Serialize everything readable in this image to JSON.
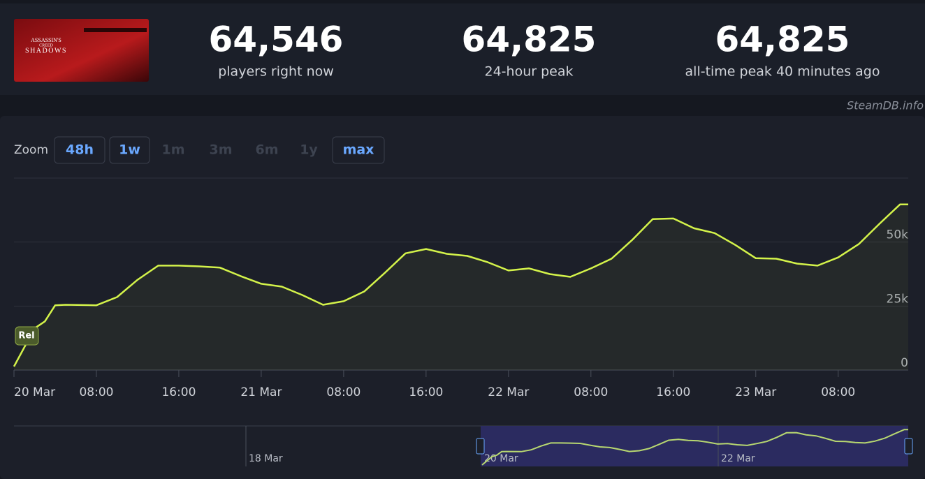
{
  "header": {
    "cover_text": [
      "ASSASSIN'S",
      "CREED",
      "SHADOWS"
    ],
    "stats": [
      {
        "value": "64,546",
        "label": "players right now"
      },
      {
        "value": "64,825",
        "label": "24-hour peak"
      },
      {
        "value": "64,825",
        "label": "all-time peak 40 minutes ago"
      }
    ]
  },
  "source": "SteamDB.info",
  "zoom": {
    "label": "Zoom",
    "options": [
      {
        "label": "48h",
        "enabled": true
      },
      {
        "label": "1w",
        "enabled": true
      },
      {
        "label": "1m",
        "enabled": false
      },
      {
        "label": "3m",
        "enabled": false
      },
      {
        "label": "6m",
        "enabled": false
      },
      {
        "label": "1y",
        "enabled": false
      },
      {
        "label": "max",
        "enabled": true
      }
    ]
  },
  "navigator": {
    "labels": [
      "18 Mar",
      "20 Mar",
      "22 Mar"
    ]
  },
  "chart_data": {
    "type": "line",
    "annotation": "Rel",
    "grid": true,
    "x": [
      0,
      2,
      3,
      4,
      5,
      8,
      10,
      12,
      14,
      16,
      18,
      20,
      22,
      24,
      26,
      28,
      30,
      32,
      34,
      36,
      38,
      40,
      42,
      44,
      46,
      48,
      50,
      52,
      54,
      56,
      58,
      60,
      62,
      64,
      66,
      68,
      70,
      72,
      74,
      76,
      78,
      80,
      82,
      84,
      86,
      86.8
    ],
    "series": [
      {
        "name": "Players",
        "color": "#d4f34a",
        "values": [
          1400,
          16300,
          19000,
          25300,
          25500,
          25300,
          28500,
          35300,
          40800,
          40800,
          40500,
          40000,
          36700,
          33700,
          32600,
          29300,
          25500,
          26900,
          30700,
          38000,
          45600,
          47300,
          45400,
          44600,
          42100,
          38900,
          39700,
          37500,
          36400,
          39700,
          43500,
          50800,
          59000,
          59200,
          55400,
          53500,
          48900,
          43700,
          43500,
          41600,
          40800,
          44000,
          49200,
          57100,
          64700,
          64700
        ]
      }
    ],
    "xlim": [
      0,
      86.8
    ],
    "xticks": [
      {
        "value": 0,
        "label": "20 Mar"
      },
      {
        "value": 8,
        "label": "08:00"
      },
      {
        "value": 16,
        "label": "16:00"
      },
      {
        "value": 24,
        "label": "21 Mar"
      },
      {
        "value": 32,
        "label": "08:00"
      },
      {
        "value": 40,
        "label": "16:00"
      },
      {
        "value": 48,
        "label": "22 Mar"
      },
      {
        "value": 56,
        "label": "08:00"
      },
      {
        "value": 64,
        "label": "16:00"
      },
      {
        "value": 72,
        "label": "23 Mar"
      },
      {
        "value": 80,
        "label": "08:00"
      }
    ],
    "ylim": [
      0,
      75000
    ],
    "yticks": [
      0,
      {
        "value": 25000,
        "label": "25k"
      },
      {
        "value": 50000,
        "label": "50k"
      }
    ]
  }
}
